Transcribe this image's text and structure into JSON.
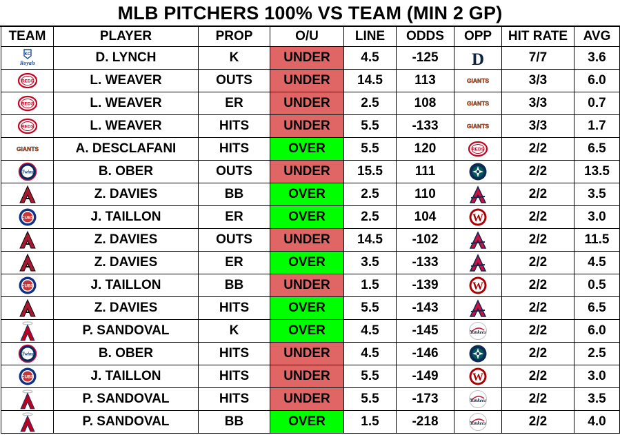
{
  "title": "MLB PITCHERS 100% VS TEAM (MIN 2 GP)",
  "headers": [
    "TEAM",
    "PLAYER",
    "PROP",
    "O/U",
    "LINE",
    "ODDS",
    "OPP",
    "HIT RATE",
    "AVG"
  ],
  "colors": {
    "under": "#e06666",
    "over": "#00ff00"
  },
  "rows": [
    {
      "team_icon": "royals-logo-icon",
      "team_text": "Royals",
      "player": "D. LYNCH",
      "prop": "K",
      "ou": "UNDER",
      "line": "4.5",
      "odds": "-125",
      "opp_icon": "tigers-logo-icon",
      "opp_text": "D",
      "hit_rate": "7/7",
      "avg": "3.6"
    },
    {
      "team_icon": "reds-logo-icon",
      "team_text": "REDS",
      "player": "L. WEAVER",
      "prop": "OUTS",
      "ou": "UNDER",
      "line": "14.5",
      "odds": "113",
      "opp_icon": "giants-logo-icon",
      "opp_text": "GIANTS",
      "hit_rate": "3/3",
      "avg": "6.0"
    },
    {
      "team_icon": "reds-logo-icon",
      "team_text": "REDS",
      "player": "L. WEAVER",
      "prop": "ER",
      "ou": "UNDER",
      "line": "2.5",
      "odds": "108",
      "opp_icon": "giants-logo-icon",
      "opp_text": "GIANTS",
      "hit_rate": "3/3",
      "avg": "0.7"
    },
    {
      "team_icon": "reds-logo-icon",
      "team_text": "REDS",
      "player": "L. WEAVER",
      "prop": "HITS",
      "ou": "UNDER",
      "line": "5.5",
      "odds": "-133",
      "opp_icon": "giants-logo-icon",
      "opp_text": "GIANTS",
      "hit_rate": "3/3",
      "avg": "1.7"
    },
    {
      "team_icon": "giants-logo-icon",
      "team_text": "GIANTS",
      "player": "A. DESCLAFANI",
      "prop": "HITS",
      "ou": "OVER",
      "line": "5.5",
      "odds": "120",
      "opp_icon": "reds-logo-icon",
      "opp_text": "REDS",
      "hit_rate": "2/2",
      "avg": "6.5"
    },
    {
      "team_icon": "twins-logo-icon",
      "team_text": "Twins",
      "player": "B. OBER",
      "prop": "OUTS",
      "ou": "UNDER",
      "line": "15.5",
      "odds": "111",
      "opp_icon": "mariners-logo-icon",
      "opp_text": "",
      "hit_rate": "2/2",
      "avg": "13.5"
    },
    {
      "team_icon": "diamondbacks-logo-icon",
      "team_text": "A",
      "player": "Z. DAVIES",
      "prop": "BB",
      "ou": "OVER",
      "line": "2.5",
      "odds": "110",
      "opp_icon": "braves-logo-icon",
      "opp_text": "A",
      "hit_rate": "2/2",
      "avg": "3.5"
    },
    {
      "team_icon": "cubs-logo-icon",
      "team_text": "CUBS",
      "player": "J. TAILLON",
      "prop": "ER",
      "ou": "OVER",
      "line": "2.5",
      "odds": "104",
      "opp_icon": "nationals-logo-icon",
      "opp_text": "W",
      "hit_rate": "2/2",
      "avg": "3.0"
    },
    {
      "team_icon": "diamondbacks-logo-icon",
      "team_text": "A",
      "player": "Z. DAVIES",
      "prop": "OUTS",
      "ou": "UNDER",
      "line": "14.5",
      "odds": "-102",
      "opp_icon": "braves-logo-icon",
      "opp_text": "A",
      "hit_rate": "2/2",
      "avg": "11.5"
    },
    {
      "team_icon": "diamondbacks-logo-icon",
      "team_text": "A",
      "player": "Z. DAVIES",
      "prop": "ER",
      "ou": "OVER",
      "line": "3.5",
      "odds": "-133",
      "opp_icon": "braves-logo-icon",
      "opp_text": "A",
      "hit_rate": "2/2",
      "avg": "4.5"
    },
    {
      "team_icon": "cubs-logo-icon",
      "team_text": "CUBS",
      "player": "J. TAILLON",
      "prop": "BB",
      "ou": "UNDER",
      "line": "1.5",
      "odds": "-139",
      "opp_icon": "nationals-logo-icon",
      "opp_text": "W",
      "hit_rate": "2/2",
      "avg": "0.5"
    },
    {
      "team_icon": "diamondbacks-logo-icon",
      "team_text": "A",
      "player": "Z. DAVIES",
      "prop": "HITS",
      "ou": "OVER",
      "line": "5.5",
      "odds": "-143",
      "opp_icon": "braves-logo-icon",
      "opp_text": "A",
      "hit_rate": "2/2",
      "avg": "6.5"
    },
    {
      "team_icon": "angels-logo-icon",
      "team_text": "A",
      "player": "P. SANDOVAL",
      "prop": "K",
      "ou": "OVER",
      "line": "4.5",
      "odds": "-145",
      "opp_icon": "yankees-logo-icon",
      "opp_text": "Yankees",
      "hit_rate": "2/2",
      "avg": "6.0"
    },
    {
      "team_icon": "twins-logo-icon",
      "team_text": "Twins",
      "player": "B. OBER",
      "prop": "HITS",
      "ou": "UNDER",
      "line": "4.5",
      "odds": "-146",
      "opp_icon": "mariners-logo-icon",
      "opp_text": "",
      "hit_rate": "2/2",
      "avg": "2.5"
    },
    {
      "team_icon": "cubs-logo-icon",
      "team_text": "CUBS",
      "player": "J. TAILLON",
      "prop": "HITS",
      "ou": "UNDER",
      "line": "5.5",
      "odds": "-149",
      "opp_icon": "nationals-logo-icon",
      "opp_text": "W",
      "hit_rate": "2/2",
      "avg": "3.0"
    },
    {
      "team_icon": "angels-logo-icon",
      "team_text": "A",
      "player": "P. SANDOVAL",
      "prop": "HITS",
      "ou": "UNDER",
      "line": "5.5",
      "odds": "-173",
      "opp_icon": "yankees-logo-icon",
      "opp_text": "Yankees",
      "hit_rate": "2/2",
      "avg": "3.5"
    },
    {
      "team_icon": "angels-logo-icon",
      "team_text": "A",
      "player": "P. SANDOVAL",
      "prop": "BB",
      "ou": "OVER",
      "line": "1.5",
      "odds": "-218",
      "opp_icon": "yankees-logo-icon",
      "opp_text": "Yankees",
      "hit_rate": "2/2",
      "avg": "4.0"
    }
  ]
}
